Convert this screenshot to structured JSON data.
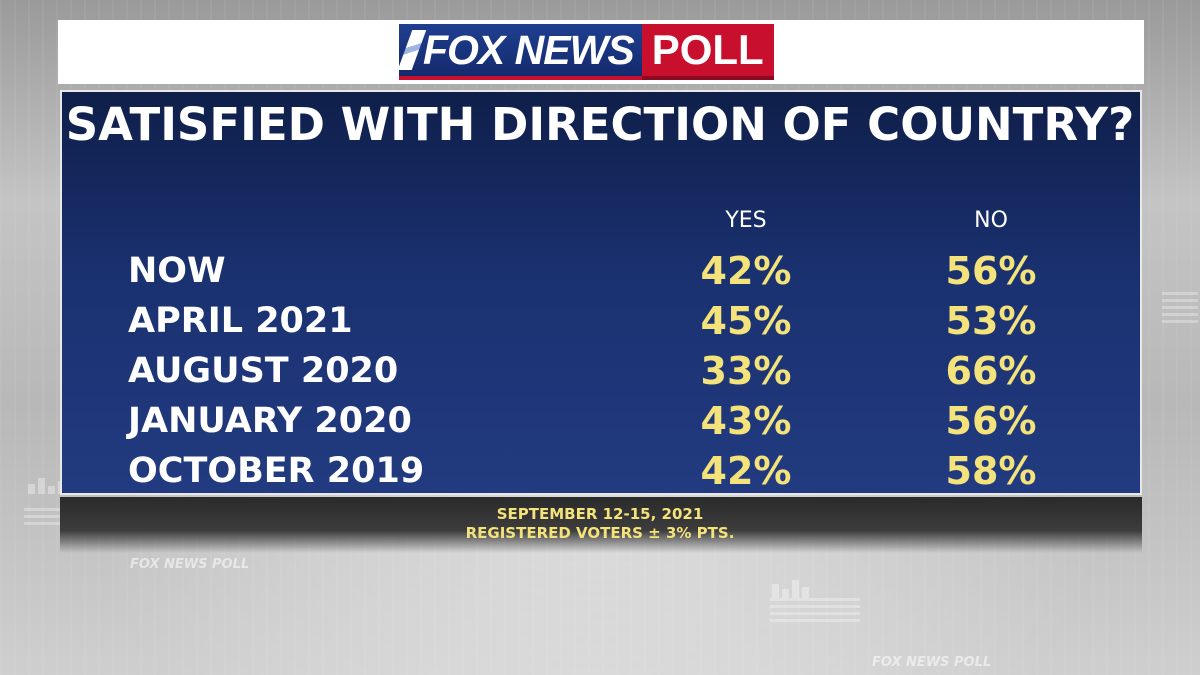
{
  "brand": {
    "logo_fox": "FOX NEWS",
    "logo_poll": "POLL",
    "bg_watermark": "FOX NEWS POLL"
  },
  "title": "SATISFIED WITH DIRECTION OF COUNTRY?",
  "columns": {
    "yes": "YES",
    "no": "NO"
  },
  "rows": [
    {
      "label": "NOW",
      "yes": "42%",
      "no": "56%"
    },
    {
      "label": "APRIL 2021",
      "yes": "45%",
      "no": "53%"
    },
    {
      "label": "AUGUST 2020",
      "yes": "33%",
      "no": "66%"
    },
    {
      "label": "JANUARY 2020",
      "yes": "43%",
      "no": "56%"
    },
    {
      "label": "OCTOBER 2019",
      "yes": "42%",
      "no": "58%"
    }
  ],
  "footnote": {
    "line1": "SEPTEMBER 12-15, 2021",
    "line2": "REGISTERED VOTERS ± 3% PTS."
  },
  "colors": {
    "panel": "#1a3170",
    "value_text": "#f4e27a",
    "logo_blue": "#1f3f8f",
    "logo_red": "#c8102e"
  }
}
